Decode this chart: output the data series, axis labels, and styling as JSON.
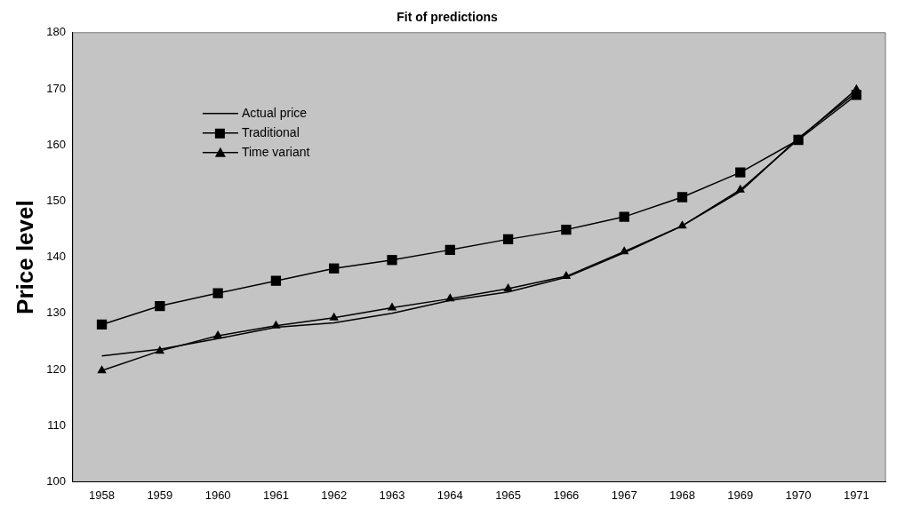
{
  "chart_data": {
    "type": "line",
    "title": "Fit of predictions",
    "ylabel": "Price level",
    "categories": [
      "1958",
      "1959",
      "1960",
      "1961",
      "1962",
      "1963",
      "1964",
      "1965",
      "1966",
      "1967",
      "1968",
      "1969",
      "1970",
      "1971"
    ],
    "ylim": [
      100,
      180
    ],
    "yticks": [
      100,
      110,
      120,
      130,
      140,
      150,
      160,
      170,
      180
    ],
    "grid": false,
    "legend": "top left",
    "series": [
      {
        "name": "Actual price",
        "color": "#000000",
        "marker": "none",
        "values": [
          122.4,
          123.6,
          125.5,
          127.5,
          128.3,
          130.0,
          132.3,
          133.8,
          136.4,
          140.8,
          145.6,
          151.7,
          161.2,
          169.4
        ]
      },
      {
        "name": "Traditional",
        "color": "#000000",
        "marker": "square",
        "values": [
          128.0,
          131.3,
          133.6,
          135.8,
          138.0,
          139.5,
          141.3,
          143.2,
          144.9,
          147.2,
          150.7,
          155.1,
          160.9,
          168.9
        ]
      },
      {
        "name": "Time variant",
        "color": "#000000",
        "marker": "triangle",
        "values": [
          119.8,
          123.3,
          126.0,
          127.8,
          129.2,
          131.0,
          132.6,
          134.4,
          136.6,
          141.0,
          145.6,
          152.0,
          161.0,
          169.9
        ]
      }
    ]
  }
}
